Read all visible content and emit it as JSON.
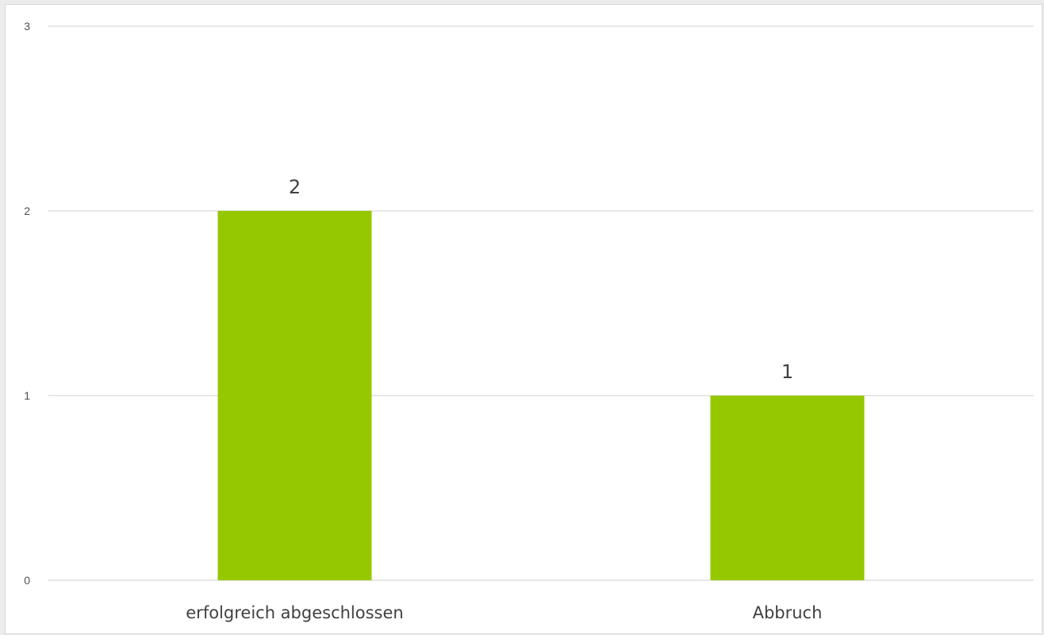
{
  "colors": {
    "bar": "#96c800",
    "grid": "#d9d9d9",
    "background": "#ffffff"
  },
  "chart_data": {
    "type": "bar",
    "title": "",
    "xlabel": "",
    "ylabel": "",
    "categories": [
      "erfolgreich abgeschlossen",
      "Abbruch"
    ],
    "values": [
      2,
      1
    ],
    "data_labels": [
      "2",
      "1"
    ],
    "ylim": [
      0,
      3
    ],
    "yticks": [
      0,
      1,
      2,
      3
    ],
    "ytick_labels": [
      "0",
      "1",
      "2",
      "3"
    ],
    "grid": true,
    "legend": "none"
  }
}
